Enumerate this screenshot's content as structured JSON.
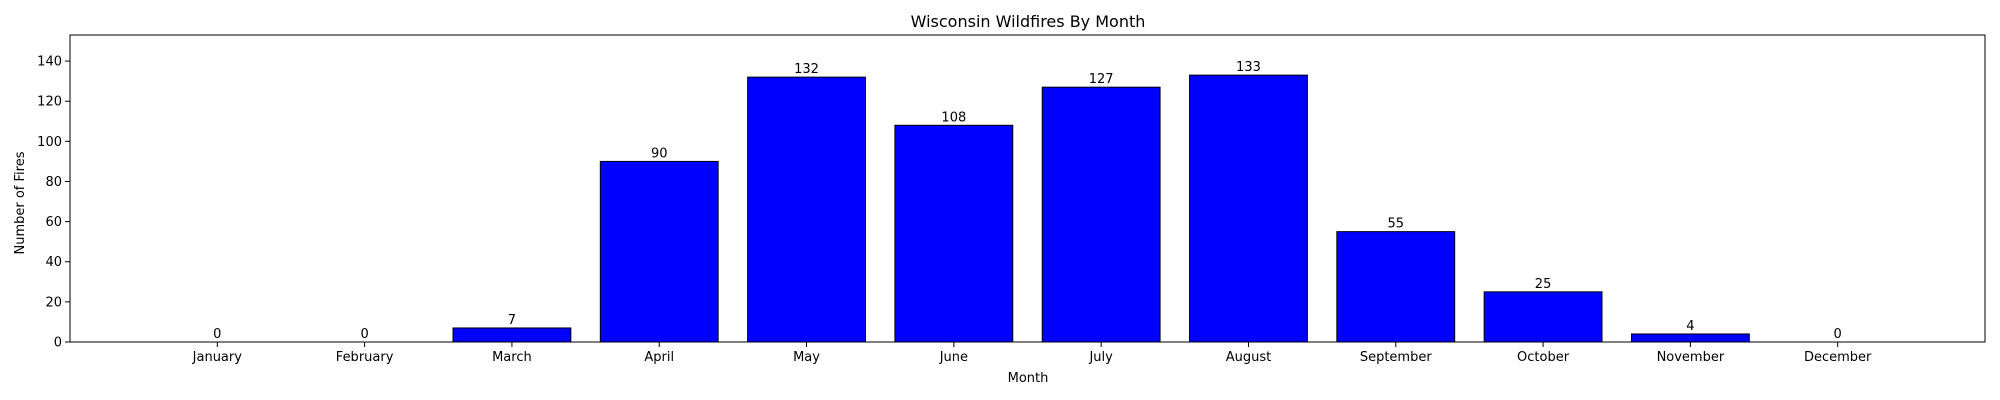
{
  "chart_data": {
    "type": "bar",
    "title": "Wisconsin Wildfires By Month",
    "xlabel": "Month",
    "ylabel": "Number of Fires",
    "categories": [
      "January",
      "February",
      "March",
      "April",
      "May",
      "June",
      "July",
      "August",
      "September",
      "October",
      "November",
      "December"
    ],
    "values": [
      0,
      0,
      7,
      90,
      132,
      108,
      127,
      133,
      55,
      25,
      4,
      0
    ],
    "data_labels": [
      "0",
      "0",
      "7",
      "90",
      "132",
      "108",
      "127",
      "133",
      "55",
      "25",
      "4",
      "0"
    ],
    "ylim": [
      0,
      153
    ],
    "yticks": [
      0,
      20,
      40,
      60,
      80,
      100,
      120,
      140
    ],
    "ytick_labels": [
      "0",
      "20",
      "40",
      "60",
      "80",
      "100",
      "120",
      "140"
    ],
    "bar_color": "#0000ff",
    "bar_edge_color": "#000000",
    "grid": false,
    "legend": "none"
  }
}
